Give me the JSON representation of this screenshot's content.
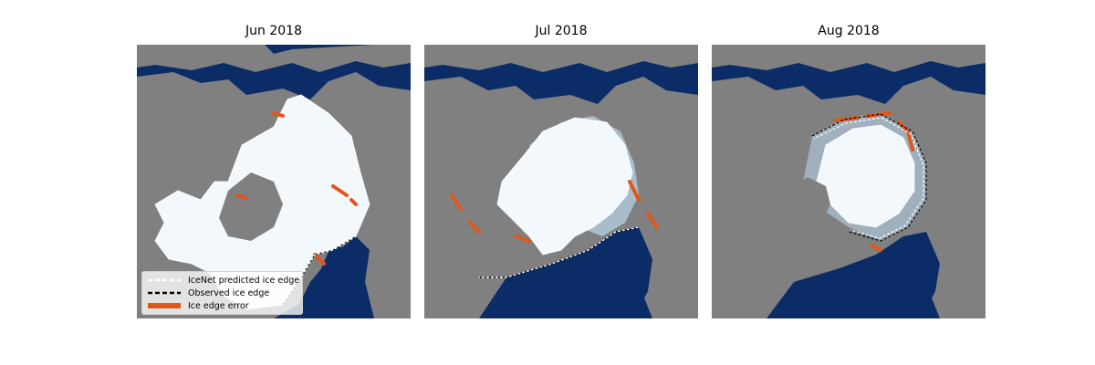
{
  "colors": {
    "ocean": "#0b2c66",
    "land": "#808080",
    "ice": "#f3f8fc",
    "ice_shade": "#b9d7ec",
    "edge_error": "#e0571a",
    "predicted_edge": "#ffffff",
    "observed_edge": "#000000"
  },
  "panels": [
    {
      "title": "Jun 2018"
    },
    {
      "title": "Jul 2018"
    },
    {
      "title": "Aug 2018"
    }
  ],
  "legend": {
    "predicted": "IceNet predicted ice edge",
    "observed": "Observed ice edge",
    "error": "Ice edge error"
  }
}
